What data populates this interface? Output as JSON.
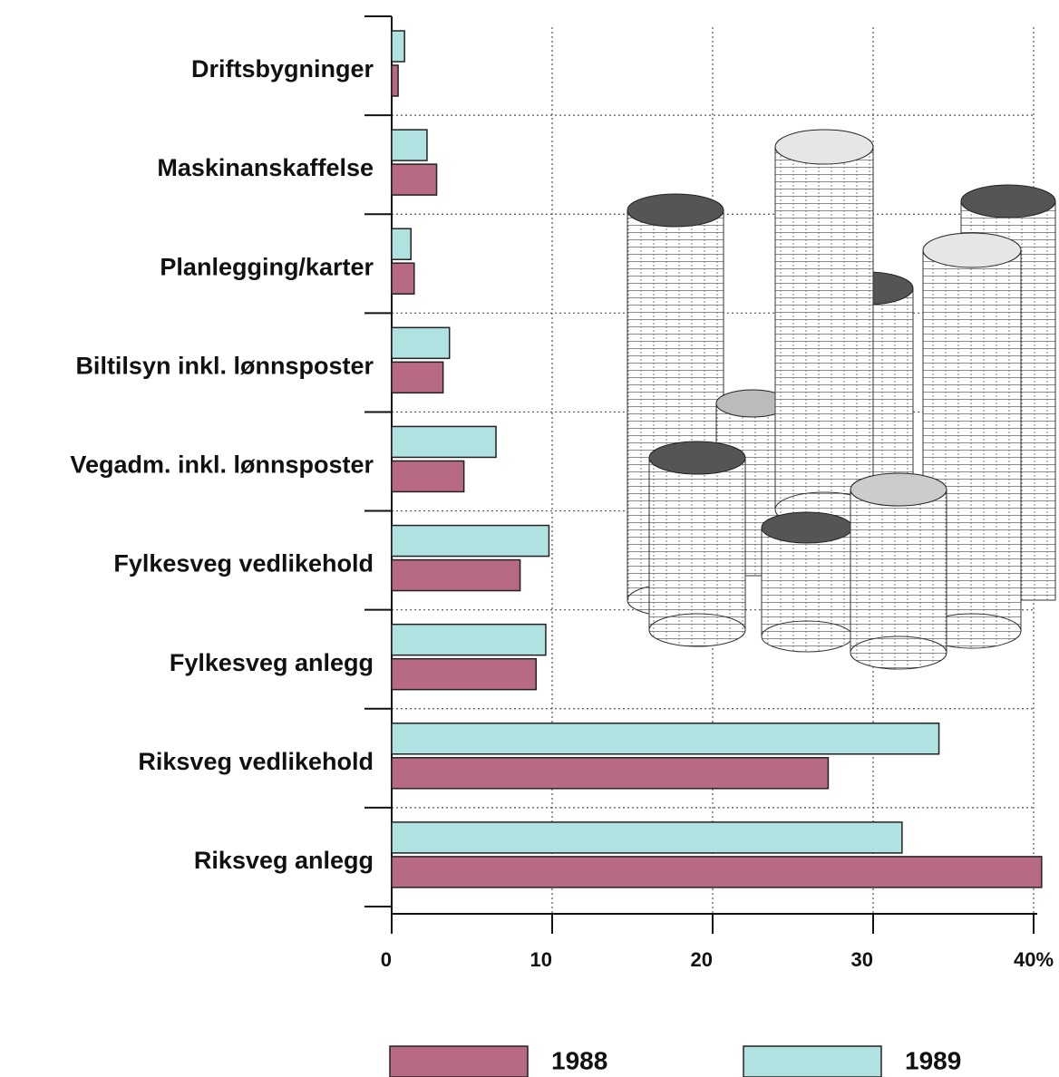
{
  "chart_data": {
    "type": "bar",
    "orientation": "horizontal",
    "categories": [
      "Driftsbygninger",
      "Maskinanskaffelse",
      "Planlegging/karter",
      "Biltilsyn inkl. lønnsposter",
      "Vegadm. inkl. lønnsposter",
      "Fylkesveg vedlikehold",
      "Fylkesveg anlegg",
      "Riksveg vedlikehold",
      "Riksveg anlegg"
    ],
    "series": [
      {
        "name": "1988",
        "color": "#b86a82",
        "values": [
          0.4,
          2.8,
          1.4,
          3.2,
          4.5,
          8.0,
          9.0,
          27.2,
          40.5
        ]
      },
      {
        "name": "1989",
        "color": "#b0e2e2",
        "values": [
          0.8,
          2.2,
          1.2,
          3.6,
          6.5,
          9.8,
          9.6,
          34.1,
          31.8
        ]
      }
    ],
    "xlim": [
      0,
      40
    ],
    "xticks": [
      0,
      10,
      20,
      30,
      {
        "value": 40,
        "label": "40%"
      }
    ],
    "grid": true
  }
}
